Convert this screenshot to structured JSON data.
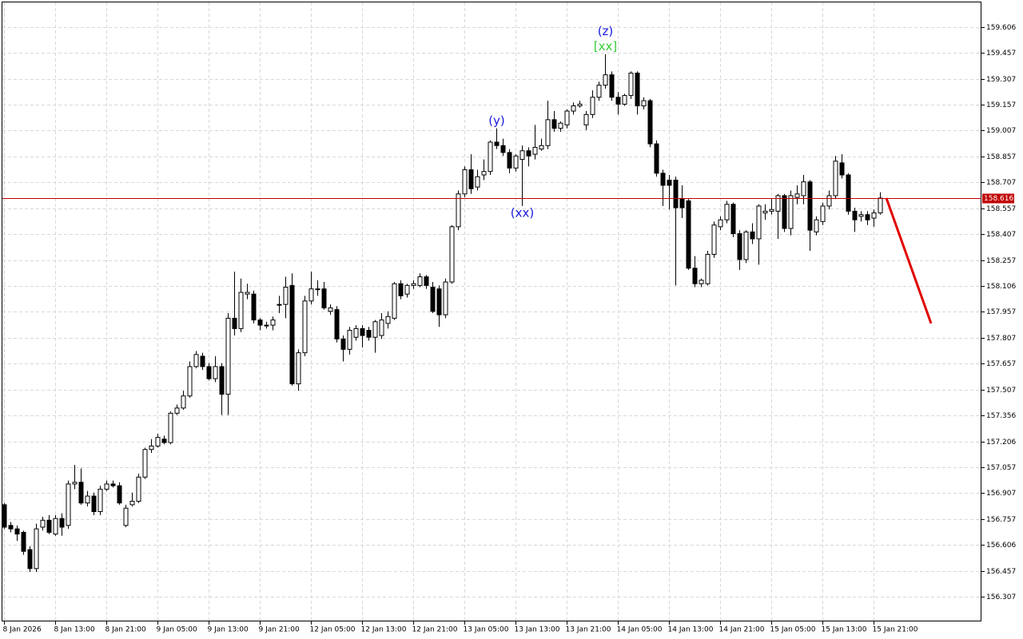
{
  "chart_data": {
    "type": "candlestick",
    "categories": [
      "8 Jan 2026",
      null,
      null,
      null,
      null,
      null,
      null,
      null,
      "8 Jan 13:00",
      null,
      null,
      null,
      null,
      null,
      null,
      null,
      "8 Jan 21:00",
      null,
      null,
      null,
      null,
      null,
      null,
      null,
      "9 Jan 05:00",
      null,
      null,
      null,
      null,
      null,
      null,
      null,
      "9 Jan 13:00",
      null,
      null,
      null,
      null,
      null,
      null,
      null,
      "9 Jan 21:00",
      null,
      null,
      null,
      null,
      null,
      null,
      null,
      "12 Jan 05:00",
      null,
      null,
      null,
      null,
      null,
      null,
      null,
      "12 Jan 13:00",
      null,
      null,
      null,
      null,
      null,
      null,
      null,
      "12 Jan 21:00",
      null,
      null,
      null,
      null,
      null,
      null,
      null,
      "13 Jan 05:00",
      null,
      null,
      null,
      null,
      null,
      null,
      null,
      "13 Jan 13:00",
      null,
      null,
      null,
      null,
      null,
      null,
      null,
      "13 Jan 21:00",
      null,
      null,
      null,
      null,
      null,
      null,
      null,
      "14 Jan 05:00",
      null,
      null,
      null,
      null,
      null,
      null,
      null,
      "14 Jan 13:00",
      null,
      null,
      null,
      null,
      null,
      null,
      null,
      "14 Jan 21:00",
      null,
      null,
      null,
      null,
      null,
      null,
      null,
      "15 Jan 05:00",
      null,
      null,
      null,
      null,
      null,
      null,
      null,
      "15 Jan 13:00",
      null,
      null,
      null,
      null,
      null,
      null,
      null,
      "15 Jan 21:00",
      null
    ],
    "open": [
      156.84,
      156.72,
      156.7,
      156.68,
      156.58,
      156.47,
      156.71,
      156.75,
      156.67,
      156.76,
      156.72,
      156.96,
      156.97,
      156.85,
      156.89,
      156.8,
      156.93,
      156.96,
      156.95,
      156.72,
      156.84,
      156.86,
      157.0,
      157.16,
      157.18,
      157.22,
      157.2,
      157.37,
      157.4,
      157.47,
      157.64,
      157.7,
      157.64,
      157.57,
      157.64,
      157.48,
      157.92,
      157.86,
      158.06,
      158.06,
      157.91,
      157.88,
      157.88,
      158.0,
      158.0,
      158.11,
      157.54,
      157.72,
      158.02,
      158.09,
      158.09,
      157.96,
      157.97,
      157.8,
      157.74,
      157.81,
      157.86,
      157.85,
      157.81,
      157.82,
      157.89,
      157.92,
      158.12,
      158.06,
      158.11,
      158.11,
      158.16,
      158.1,
      158.09,
      157.94,
      158.13,
      158.45,
      158.64,
      158.78,
      158.68,
      158.75,
      158.77,
      158.94,
      158.92,
      158.88,
      158.79,
      158.84,
      158.89,
      158.87,
      158.9,
      158.92,
      159.07,
      159.02,
      159.04,
      159.12,
      159.15,
      159.04,
      159.1,
      159.2,
      159.27,
      159.33,
      159.2,
      159.16,
      159.21,
      159.34,
      159.15,
      159.18,
      158.93,
      158.76,
      158.72,
      158.72,
      158.61,
      158.6,
      158.21,
      158.12,
      158.12,
      158.29,
      158.45,
      158.49,
      158.58,
      158.41,
      158.26,
      158.42,
      158.38,
      158.53,
      158.54,
      158.54,
      158.63,
      158.44,
      158.62,
      158.63,
      158.71,
      158.42,
      158.48,
      158.57,
      158.63,
      158.82,
      158.75,
      158.54,
      158.51,
      158.52,
      158.5,
      158.53
    ],
    "high": [
      156.85,
      156.74,
      156.72,
      156.69,
      156.6,
      156.73,
      156.77,
      156.78,
      156.78,
      156.79,
      156.98,
      157.07,
      157.05,
      156.92,
      156.91,
      156.95,
      156.98,
      156.98,
      156.97,
      156.84,
      156.91,
      157.02,
      157.17,
      157.22,
      157.25,
      157.24,
      157.38,
      157.42,
      157.5,
      157.67,
      157.73,
      157.72,
      157.66,
      157.7,
      157.66,
      157.95,
      158.19,
      158.15,
      158.12,
      158.08,
      157.92,
      157.9,
      157.93,
      158.05,
      158.16,
      158.18,
      157.74,
      158.05,
      158.19,
      158.14,
      158.13,
      158.0,
      157.99,
      157.82,
      157.87,
      157.88,
      157.88,
      157.87,
      157.91,
      157.95,
      157.96,
      158.13,
      158.14,
      158.12,
      158.14,
      158.18,
      158.17,
      158.13,
      158.11,
      158.15,
      158.46,
      158.66,
      158.8,
      158.87,
      158.78,
      158.84,
      158.95,
      159.02,
      158.96,
      158.9,
      158.87,
      158.92,
      158.91,
      159.04,
      158.96,
      159.18,
      159.12,
      159.06,
      159.13,
      159.17,
      159.18,
      159.12,
      159.24,
      159.29,
      159.45,
      159.35,
      159.23,
      159.22,
      159.35,
      159.35,
      159.2,
      159.19,
      158.95,
      158.78,
      158.75,
      158.74,
      158.69,
      158.61,
      158.28,
      158.15,
      158.31,
      158.48,
      158.51,
      158.6,
      158.59,
      158.43,
      158.43,
      158.47,
      158.58,
      158.58,
      158.61,
      158.64,
      158.64,
      158.66,
      158.69,
      158.75,
      158.72,
      158.51,
      158.59,
      158.66,
      158.86,
      158.87,
      158.76,
      158.56,
      158.54,
      158.54,
      158.55,
      158.65
    ],
    "low": [
      156.7,
      156.68,
      156.63,
      156.55,
      156.45,
      156.45,
      156.69,
      156.67,
      156.66,
      156.66,
      156.7,
      156.93,
      156.84,
      156.83,
      156.78,
      156.78,
      156.92,
      156.94,
      156.84,
      156.71,
      156.83,
      156.85,
      156.99,
      157.14,
      157.17,
      157.19,
      157.19,
      157.36,
      157.39,
      157.46,
      157.63,
      157.62,
      157.56,
      157.55,
      157.36,
      157.36,
      157.82,
      157.84,
      158.03,
      157.89,
      157.85,
      157.86,
      157.85,
      157.95,
      157.92,
      157.53,
      157.5,
      157.7,
      158.0,
      158.05,
      157.97,
      157.94,
      157.78,
      157.67,
      157.71,
      157.79,
      157.75,
      157.79,
      157.72,
      157.8,
      157.86,
      157.91,
      158.03,
      158.04,
      158.09,
      158.1,
      158.09,
      157.95,
      157.87,
      157.92,
      158.12,
      158.43,
      158.62,
      158.64,
      158.66,
      158.72,
      158.75,
      158.9,
      158.86,
      158.76,
      158.77,
      158.57,
      158.8,
      158.84,
      158.89,
      158.9,
      159.0,
      159.0,
      159.02,
      159.1,
      159.14,
      159.01,
      159.08,
      159.18,
      159.25,
      159.18,
      159.1,
      159.15,
      159.19,
      159.1,
      159.13,
      158.91,
      158.74,
      158.57,
      158.55,
      158.11,
      158.5,
      158.2,
      158.1,
      158.1,
      158.11,
      158.27,
      158.43,
      158.47,
      158.39,
      158.2,
      158.24,
      158.35,
      158.23,
      158.49,
      158.52,
      158.38,
      158.42,
      158.4,
      158.58,
      158.58,
      158.31,
      158.4,
      158.46,
      158.55,
      158.61,
      158.73,
      158.52,
      158.42,
      158.48,
      158.46,
      158.45,
      158.52
    ],
    "close": [
      156.71,
      156.7,
      156.67,
      156.57,
      156.47,
      156.7,
      156.75,
      156.68,
      156.76,
      156.71,
      156.96,
      156.97,
      156.85,
      156.89,
      156.8,
      156.93,
      156.96,
      156.95,
      156.85,
      156.82,
      156.86,
      157.0,
      157.16,
      157.18,
      157.23,
      157.2,
      157.37,
      157.4,
      157.47,
      157.64,
      157.71,
      157.64,
      157.57,
      157.64,
      157.48,
      157.92,
      157.86,
      158.07,
      158.07,
      157.91,
      157.88,
      157.88,
      157.91,
      158.0,
      158.1,
      157.54,
      157.72,
      158.02,
      158.09,
      158.09,
      157.98,
      157.98,
      157.8,
      157.74,
      157.85,
      157.86,
      157.82,
      157.81,
      157.9,
      157.91,
      157.93,
      158.12,
      158.05,
      158.11,
      158.12,
      158.16,
      158.11,
      157.96,
      157.94,
      158.13,
      158.45,
      158.64,
      158.78,
      158.67,
      158.74,
      158.77,
      158.94,
      158.92,
      158.88,
      158.79,
      158.86,
      158.89,
      158.86,
      158.91,
      158.92,
      159.07,
      159.02,
      159.05,
      159.12,
      159.15,
      159.16,
      159.1,
      159.2,
      159.27,
      159.33,
      159.2,
      159.16,
      159.21,
      159.34,
      159.15,
      159.18,
      158.93,
      158.76,
      158.69,
      158.69,
      158.56,
      158.56,
      158.21,
      158.12,
      158.14,
      158.29,
      158.46,
      158.49,
      158.58,
      158.41,
      158.26,
      158.42,
      158.38,
      158.57,
      158.54,
      158.55,
      158.63,
      158.44,
      158.63,
      158.64,
      158.71,
      158.43,
      158.49,
      158.57,
      158.63,
      158.83,
      158.75,
      158.54,
      158.49,
      158.52,
      158.49,
      158.53,
      158.616
    ],
    "up_color": "#ffffff",
    "down_color": "#000000",
    "ylim": [
      156.164,
      159.754
    ],
    "yticks": [
      159.606,
      159.457,
      159.307,
      159.157,
      159.007,
      158.857,
      158.707,
      158.557,
      158.407,
      158.257,
      158.106,
      157.957,
      157.807,
      157.657,
      157.507,
      157.356,
      157.206,
      157.057,
      156.907,
      156.757,
      156.606,
      156.457,
      156.307
    ],
    "grid": true,
    "price_line": {
      "value": 158.616,
      "color": "#c00000"
    },
    "forecast": {
      "color": "#e00000",
      "x": [
        138,
        145
      ],
      "y": [
        158.616,
        157.89
      ]
    },
    "annotations": [
      {
        "text": "[xx]",
        "color": "#33cc33",
        "index": 94,
        "anchor": "high"
      },
      {
        "text": "(z)",
        "color": "#1a1adb",
        "index": 94,
        "anchor": "high"
      },
      {
        "text": "(y)",
        "color": "#1a1adb",
        "index": 77,
        "anchor": "high"
      },
      {
        "text": "(xx)",
        "color": "#1a1adb",
        "index": 81,
        "anchor": "low"
      }
    ]
  }
}
